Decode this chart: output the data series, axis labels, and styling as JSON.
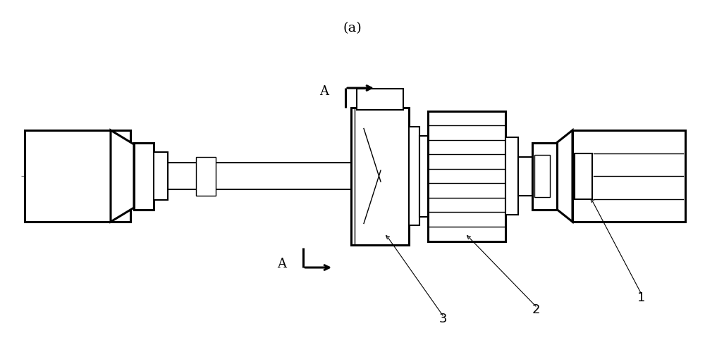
{
  "bg_color": "#ffffff",
  "line_color": "#000000",
  "center_line_color": "#777777",
  "fig_width": 10.0,
  "fig_height": 5.0,
  "dpi": 100,
  "caption": "(a)"
}
